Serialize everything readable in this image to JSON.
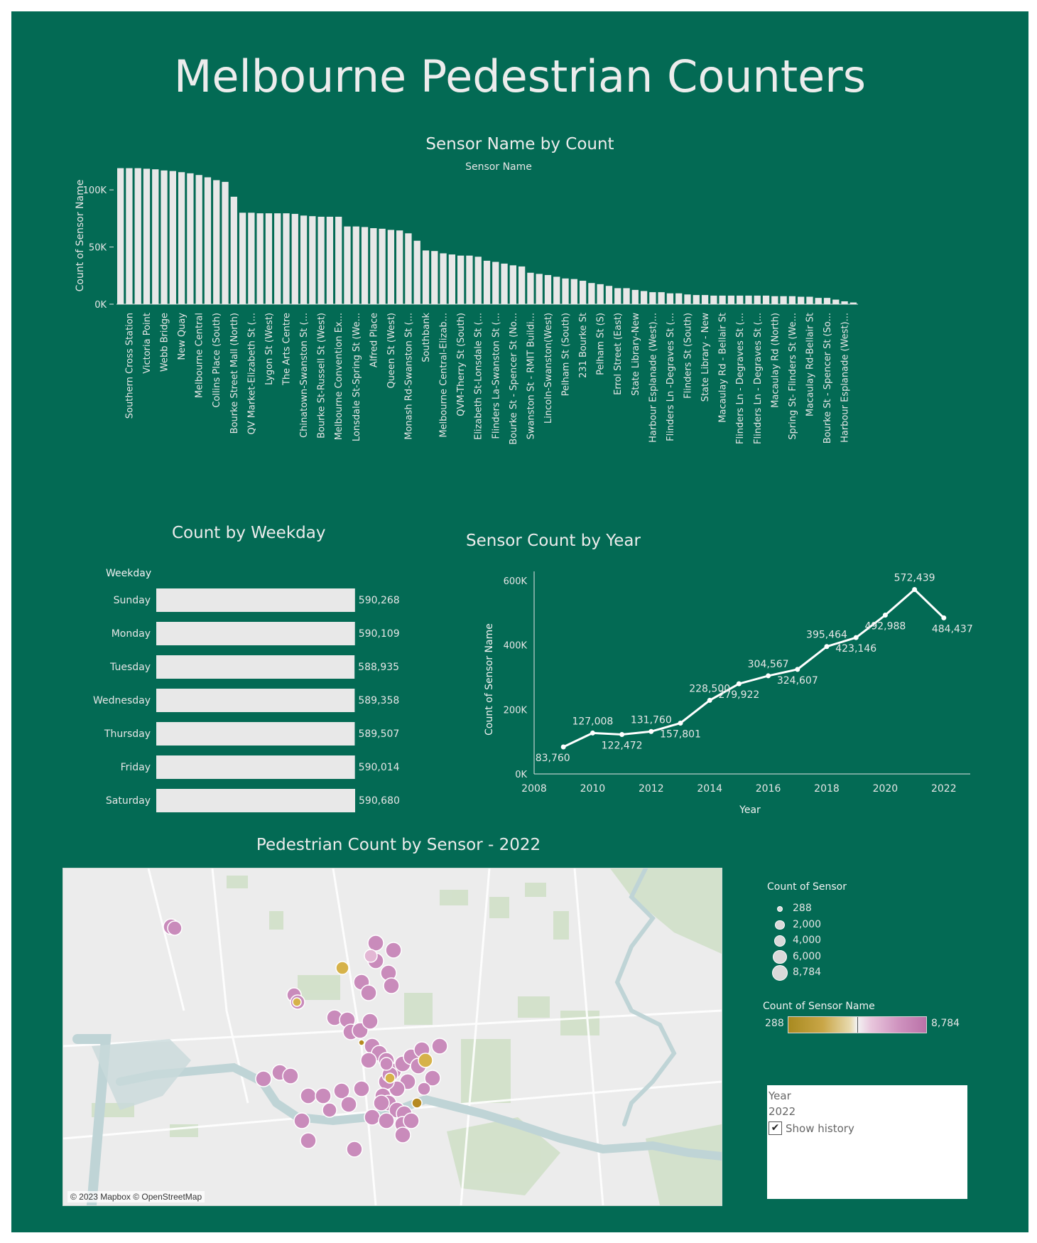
{
  "title": "Melbourne Pedestrian Counters",
  "colors": {
    "background": "#036a54",
    "bars": "#e8e8e8",
    "line": "#ffffff",
    "low": "#a88a20",
    "high": "#ba72a8"
  },
  "chart_data": [
    {
      "type": "bar",
      "title": "Sensor Name by Count",
      "header_label": "Sensor Name",
      "ylabel": "Count of Sensor Name",
      "ylim": [
        0,
        120000
      ],
      "yticks": [
        0,
        50000,
        100000
      ],
      "ytick_labels": [
        "0K",
        "50K",
        "100K"
      ],
      "grid": false,
      "category_labels": [
        "Southern Cross Station",
        "Victoria Point",
        "Webb Bridge",
        "New Quay",
        "Melbourne Central",
        "Collins Place (South)",
        "Bourke Street Mall (North)",
        "QV Market-Elizabeth St (...",
        "Lygon St (West)",
        "The Arts Centre",
        "Chinatown-Swanston St (...",
        "Bourke St-Russell St (West)",
        "Melbourne Convention Ex...",
        "Lonsdale St-Spring St (We...",
        "Alfred Place",
        "Queen St (West)",
        "Monash Rd-Swanston St (...",
        "Southbank",
        "Melbourne Central-Elizab...",
        "QVM-Therry St (South)",
        "Elizabeth St-Lonsdale St (...",
        "Flinders La-Swanston St (...",
        "Bourke St - Spencer St (No...",
        "Swanston St - RMIT Buildi...",
        "Lincoln-Swanston(West)",
        "Pelham St (South)",
        "231 Bourke St",
        "Pelham St (S)",
        "Errol Street (East)",
        "State Library-New",
        "Harbour Esplanade (West)...",
        "Flinders Ln -Degraves St (...",
        "Flinders St (South)",
        "State Library - New",
        "Macaulay Rd - Bellair St",
        "Flinders Ln - Degraves St (...",
        "Flinders Ln - Degraves St (...",
        "Macaulay Rd (North)",
        "Spring St- Flinders St (We...",
        "Macaulay Rd-Bellair St",
        "Bourke St - Spencer St (So...",
        "Harbour Esplanade (West)..."
      ],
      "values": [
        119000,
        119000,
        119000,
        118500,
        118000,
        117000,
        116500,
        115500,
        114500,
        113000,
        111000,
        108500,
        107000,
        94000,
        80000,
        80000,
        79500,
        79500,
        79500,
        79500,
        79000,
        77500,
        77000,
        76500,
        76500,
        76500,
        68000,
        68000,
        67500,
        66500,
        66000,
        65000,
        64500,
        62000,
        55500,
        47000,
        46500,
        44500,
        43500,
        42500,
        42500,
        41500,
        38000,
        37000,
        35500,
        34000,
        33000,
        27500,
        26500,
        25500,
        24000,
        22500,
        22000,
        20500,
        18500,
        17500,
        16000,
        14000,
        14000,
        12500,
        11500,
        10500,
        10500,
        9500,
        9500,
        8500,
        8000,
        8000,
        7500,
        7500,
        7500,
        7500,
        7500,
        7500,
        7500,
        7000,
        7000,
        7000,
        6500,
        6500,
        5500,
        5500,
        4000,
        2500,
        1500
      ]
    },
    {
      "type": "bar",
      "orientation": "horizontal",
      "title": "Count by Weekday",
      "ylabel": "Weekday",
      "categories": [
        "Sunday",
        "Monday",
        "Tuesday",
        "Wednesday",
        "Thursday",
        "Friday",
        "Saturday"
      ],
      "values": [
        590268,
        590109,
        588935,
        589358,
        589507,
        590014,
        590680
      ],
      "data_labels": [
        "590,268",
        "590,109",
        "588,935",
        "589,358",
        "589,507",
        "590,014",
        "590,680"
      ]
    },
    {
      "type": "line",
      "title": "Sensor Count by Year",
      "xlabel": "Year",
      "ylabel": "Count of Sensor Name",
      "x": [
        2009,
        2010,
        2011,
        2012,
        2013,
        2014,
        2015,
        2016,
        2017,
        2018,
        2019,
        2020,
        2021,
        2022
      ],
      "y": [
        83760,
        127008,
        122472,
        131760,
        157801,
        228500,
        279922,
        304567,
        324607,
        395464,
        423146,
        492988,
        572439,
        484437
      ],
      "data_labels": [
        "83,760",
        "127,008",
        "122,472",
        "131,760",
        "157,801",
        "228,500",
        "279,922",
        "304,567",
        "324,607",
        "395,464",
        "423,146",
        "492,988",
        "572,439",
        "484,437"
      ],
      "xticks": [
        "2008",
        "2010",
        "2012",
        "2014",
        "2016",
        "2018",
        "2020",
        "2022"
      ],
      "ylim": [
        0,
        600000
      ],
      "ytick_labels": [
        "0K",
        "200K",
        "400K",
        "600K"
      ],
      "grid": false
    }
  ],
  "map": {
    "title": "Pedestrian Count by Sensor - 2022",
    "credit": "© 2023 Mapbox © OpenStreetMap",
    "size_legend": {
      "title": "Count of Sensor",
      "items": [
        {
          "label": "288",
          "value": 288
        },
        {
          "label": "2,000",
          "value": 2000
        },
        {
          "label": "4,000",
          "value": 4000
        },
        {
          "label": "6,000",
          "value": 6000
        },
        {
          "label": "8,784",
          "value": 8784
        }
      ]
    },
    "color_legend": {
      "title": "Count of Sensor Name",
      "min_label": "288",
      "max_label": "8,784"
    }
  },
  "filter": {
    "label": "Year",
    "value": "2022",
    "show_history_label": "Show history",
    "show_history_checked": true
  }
}
